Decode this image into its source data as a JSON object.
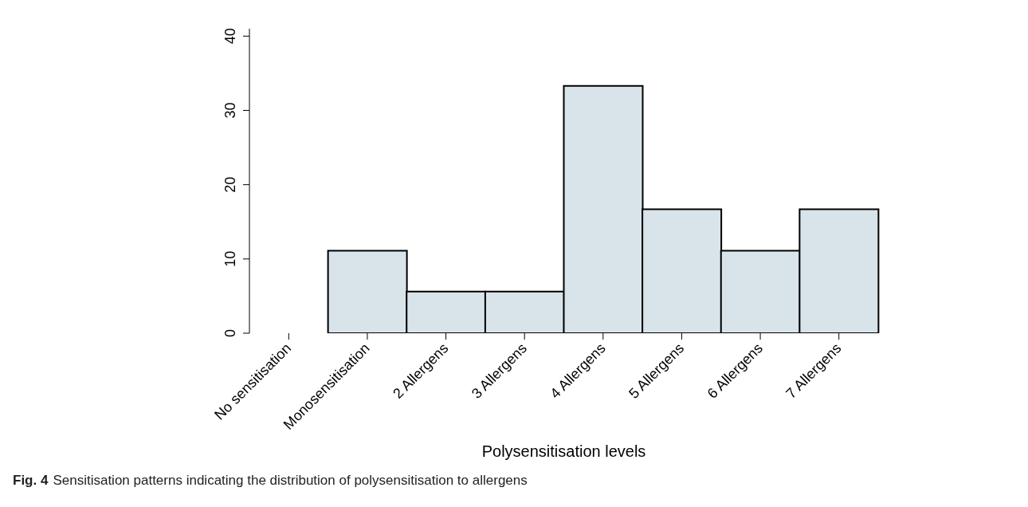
{
  "chart_data": {
    "type": "bar",
    "xlabel": "Polysensitisation levels",
    "categories": [
      "No sensitisation",
      "Monosensitisation",
      "2 Allergens",
      "3 Allergens",
      "4 Allergens",
      "5 Allergens",
      "6 Allergens",
      "7 Allergens"
    ],
    "values": [
      0,
      11.1,
      5.6,
      5.6,
      33.3,
      16.7,
      11.1,
      16.7
    ],
    "color": "#d9e4ea",
    "ylim": [
      0,
      41
    ],
    "yticks": [
      0,
      10,
      20,
      30,
      40
    ],
    "grid": false,
    "legend": false,
    "annotations": [
      "Fig. 4",
      "Sensitisation patterns indicating the distribution of polysensitisation to allergens"
    ]
  }
}
